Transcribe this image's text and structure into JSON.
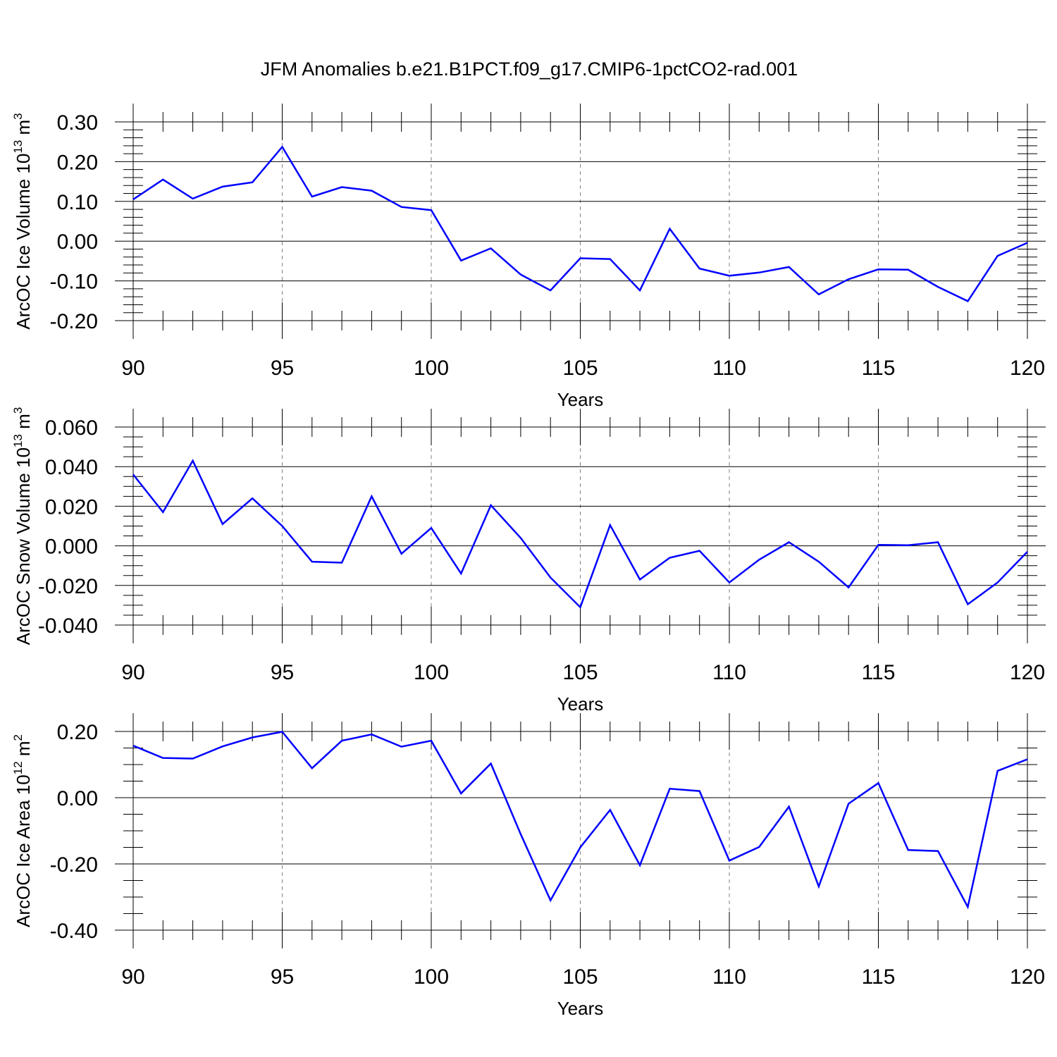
{
  "title": "JFM Anomalies b.e21.B1PCT.f09_g17.CMIP6-1pctCO2-rad.001",
  "colors": {
    "line": "#0000ff",
    "axis": "#000000",
    "grid": "#7f7f7f"
  },
  "chart_data": [
    {
      "type": "line",
      "ylabel": "ArcOC Ice Volume 10",
      "ylabel_exp": "13",
      "ylabel_unit": " m",
      "ylabel_unit_exp": "3",
      "xlabel": "Years",
      "xlim": [
        90,
        120
      ],
      "ylim": [
        -0.2,
        0.3
      ],
      "yticks": [
        -0.2,
        -0.1,
        0.0,
        0.1,
        0.2,
        0.3
      ],
      "ytick_labels": [
        "-0.20",
        "-0.10",
        "0.00",
        "0.10",
        "0.20",
        "0.30"
      ],
      "yminor": 0.02,
      "xticks": [
        90,
        95,
        100,
        105,
        110,
        115,
        120
      ],
      "xtick_labels": [
        "90",
        "95",
        "100",
        "105",
        "110",
        "115",
        "120"
      ],
      "x": [
        90,
        91,
        92,
        93,
        94,
        95,
        96,
        97,
        98,
        99,
        100,
        101,
        102,
        103,
        104,
        105,
        106,
        107,
        108,
        109,
        110,
        111,
        112,
        113,
        114,
        115,
        116,
        117,
        118,
        119,
        120
      ],
      "values": [
        0.105,
        0.155,
        0.107,
        0.137,
        0.148,
        0.237,
        0.112,
        0.136,
        0.127,
        0.086,
        0.078,
        -0.049,
        -0.018,
        -0.084,
        -0.124,
        -0.043,
        -0.045,
        -0.124,
        0.031,
        -0.069,
        -0.087,
        -0.079,
        -0.065,
        -0.134,
        -0.096,
        -0.071,
        -0.072,
        -0.115,
        -0.151,
        -0.037,
        -0.004
      ]
    },
    {
      "type": "line",
      "ylabel": "ArcOC Snow Volume 10",
      "ylabel_exp": "13",
      "ylabel_unit": " m",
      "ylabel_unit_exp": "3",
      "xlabel": "Years",
      "xlim": [
        90,
        120
      ],
      "ylim": [
        -0.04,
        0.06
      ],
      "yticks": [
        -0.04,
        -0.02,
        0.0,
        0.02,
        0.04,
        0.06
      ],
      "ytick_labels": [
        "-0.040",
        "-0.020",
        "0.000",
        "0.020",
        "0.040",
        "0.060"
      ],
      "yminor": 0.005,
      "xticks": [
        90,
        95,
        100,
        105,
        110,
        115,
        120
      ],
      "xtick_labels": [
        "90",
        "95",
        "100",
        "105",
        "110",
        "115",
        "120"
      ],
      "x": [
        90,
        91,
        92,
        93,
        94,
        95,
        96,
        97,
        98,
        99,
        100,
        101,
        102,
        103,
        104,
        105,
        106,
        107,
        108,
        109,
        110,
        111,
        112,
        113,
        114,
        115,
        116,
        117,
        118,
        119,
        120
      ],
      "values": [
        0.036,
        0.017,
        0.043,
        0.011,
        0.024,
        0.01,
        -0.008,
        -0.0085,
        0.025,
        -0.004,
        0.009,
        -0.014,
        0.0205,
        0.004,
        -0.016,
        -0.031,
        0.0105,
        -0.017,
        -0.006,
        -0.0025,
        -0.0185,
        -0.007,
        0.0018,
        -0.008,
        -0.021,
        0.0005,
        0.0003,
        0.0018,
        -0.0295,
        -0.0185,
        -0.003
      ]
    },
    {
      "type": "line",
      "ylabel": "ArcOC Ice Area 10",
      "ylabel_exp": "12",
      "ylabel_unit": " m",
      "ylabel_unit_exp": "2",
      "xlabel": "Years",
      "xlim": [
        90,
        120
      ],
      "ylim": [
        -0.4,
        0.2
      ],
      "yticks": [
        -0.4,
        -0.2,
        0.0,
        0.2
      ],
      "ytick_labels": [
        "-0.40",
        "-0.20",
        "0.00",
        "0.20"
      ],
      "yminor": 0.05,
      "xticks": [
        90,
        95,
        100,
        105,
        110,
        115,
        120
      ],
      "xtick_labels": [
        "90",
        "95",
        "100",
        "105",
        "110",
        "115",
        "120"
      ],
      "x": [
        90,
        91,
        92,
        93,
        94,
        95,
        96,
        97,
        98,
        99,
        100,
        101,
        102,
        103,
        104,
        105,
        106,
        107,
        108,
        109,
        110,
        111,
        112,
        113,
        114,
        115,
        116,
        117,
        118,
        119,
        120
      ],
      "values": [
        0.157,
        0.12,
        0.118,
        0.155,
        0.182,
        0.199,
        0.089,
        0.172,
        0.191,
        0.154,
        0.172,
        0.013,
        0.103,
        -0.11,
        -0.31,
        -0.15,
        -0.037,
        -0.204,
        0.027,
        0.02,
        -0.19,
        -0.149,
        -0.027,
        -0.268,
        -0.018,
        0.044,
        -0.158,
        -0.161,
        -0.33,
        0.081,
        0.116
      ]
    }
  ]
}
